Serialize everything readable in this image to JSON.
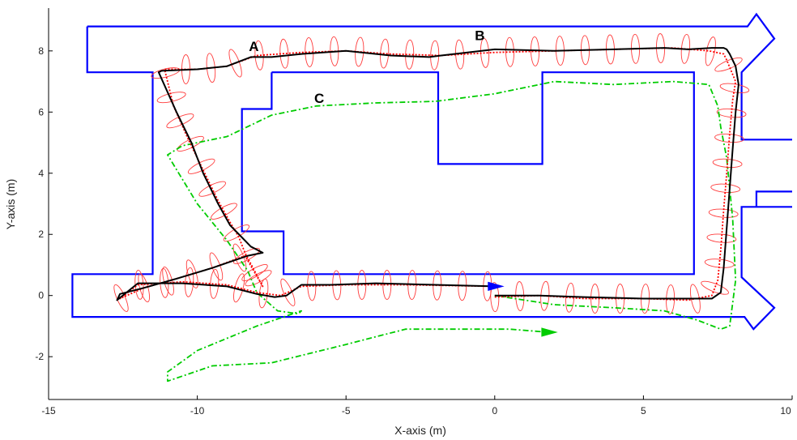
{
  "chart_data": {
    "type": "line",
    "title": "",
    "xlabel": "X-axis (m)",
    "ylabel": "Y-axis (m)",
    "xlim": [
      -15,
      10
    ],
    "ylim": [
      -3.4,
      9.4
    ],
    "grid": false,
    "xticks": [
      -15,
      -10,
      -5,
      0,
      5,
      10
    ],
    "yticks": [
      -2,
      0,
      2,
      4,
      6,
      8
    ],
    "annotations": [
      {
        "text": "A",
        "x": -8.1,
        "y": 8.0
      },
      {
        "text": "B",
        "x": -0.5,
        "y": 8.35
      },
      {
        "text": "C",
        "x": -5.9,
        "y": 6.3
      }
    ],
    "walls": [
      {
        "name": "outer-wall",
        "color": "#0000ff",
        "points": [
          [
            -13.7,
            8.8
          ],
          [
            8.5,
            8.8
          ],
          [
            8.8,
            9.2
          ],
          [
            9.4,
            8.4
          ],
          [
            8.3,
            7.3
          ],
          [
            8.3,
            5.1
          ],
          [
            10,
            5.1
          ]
        ]
      },
      {
        "name": "outer-wall-lower",
        "color": "#0000ff",
        "points": [
          [
            10,
            2.9
          ],
          [
            8.3,
            2.9
          ],
          [
            8.3,
            0.6
          ],
          [
            9.4,
            -0.4
          ],
          [
            8.7,
            -1.1
          ],
          [
            8.4,
            -0.7
          ],
          [
            -14.2,
            -0.7
          ],
          [
            -14.2,
            0.7
          ],
          [
            -11.5,
            0.7
          ],
          [
            -11.5,
            7.3
          ],
          [
            -13.7,
            7.3
          ],
          [
            -13.7,
            8.8
          ]
        ]
      },
      {
        "name": "side-door",
        "color": "#0000ff",
        "points": [
          [
            8.8,
            2.9
          ],
          [
            8.8,
            3.4
          ],
          [
            10,
            3.4
          ]
        ]
      },
      {
        "name": "inner-wall",
        "color": "#0000ff",
        "points": [
          [
            -7.5,
            7.3
          ],
          [
            -1.9,
            7.3
          ],
          [
            -1.9,
            4.3
          ],
          [
            1.6,
            4.3
          ],
          [
            1.6,
            7.3
          ],
          [
            6.7,
            7.3
          ],
          [
            6.7,
            0.7
          ],
          [
            -7.1,
            0.7
          ],
          [
            -7.1,
            2.1
          ],
          [
            -8.5,
            2.1
          ],
          [
            -8.5,
            6.1
          ],
          [
            -7.5,
            6.1
          ],
          [
            -7.5,
            7.3
          ]
        ]
      }
    ],
    "series": [
      {
        "name": "",
        "color": "#000000",
        "style": "solid",
        "x": [
          0.0,
          1.5,
          3.0,
          5.0,
          6.5,
          7.3,
          7.6,
          7.7,
          7.8,
          7.9,
          8.0,
          8.1,
          8.2,
          8.1,
          7.9,
          7.8,
          7.7,
          7.3,
          6.5,
          5.7,
          4.0,
          2.0,
          0.0,
          -1.8,
          -2.2,
          -3.5,
          -5.0,
          -6.5,
          -7.5,
          -8.2,
          -9.0,
          -10.0,
          -11.2,
          -11.3,
          -10.7,
          -10.2,
          -9.8,
          -9.3,
          -8.9,
          -8.5,
          -8.2,
          -7.8,
          -8.3,
          -9.5,
          -10.7,
          -11.8,
          -12.6,
          -12.7,
          -12.0,
          -10.5,
          -9.0,
          -8.0,
          -7.4,
          -7.0,
          -6.5,
          -5.5,
          -4.0,
          -2.0,
          0.0
        ],
        "y": [
          0.0,
          0.0,
          -0.05,
          -0.1,
          -0.1,
          -0.1,
          0.1,
          0.9,
          2.2,
          3.5,
          4.8,
          6.0,
          6.9,
          7.5,
          7.9,
          8.05,
          8.1,
          8.1,
          8.05,
          8.1,
          8.05,
          8.0,
          8.05,
          7.85,
          7.8,
          7.85,
          8.0,
          7.9,
          7.8,
          7.8,
          7.5,
          7.4,
          7.35,
          7.3,
          6.0,
          5.0,
          4.0,
          3.0,
          2.3,
          1.9,
          1.6,
          1.4,
          1.3,
          0.9,
          0.55,
          0.25,
          0.05,
          -0.15,
          0.4,
          0.4,
          0.3,
          0.05,
          -0.05,
          0.0,
          0.35,
          0.35,
          0.4,
          0.35,
          0.3
        ]
      },
      {
        "name": "",
        "color": "#ff0000",
        "style": "dotted",
        "x": [
          0.0,
          1.5,
          3.0,
          5.0,
          6.5,
          7.3,
          7.5,
          7.6,
          7.7,
          7.8,
          7.9,
          8.0,
          8.1,
          7.8,
          7.7,
          7.2,
          6.0,
          4.0,
          2.0,
          0.0,
          -1.8,
          -3.5,
          -5.0,
          -6.5,
          -8.0,
          -9.0,
          -10.0,
          -11.1,
          -10.8,
          -10.3,
          -9.8,
          -9.3,
          -8.9,
          -8.6,
          -8.4,
          -7.8,
          -8.4,
          -9.5,
          -10.7,
          -11.8,
          -12.6,
          -12.0,
          -10.5,
          -9.0,
          -8.0,
          -7.2,
          -6.5,
          -5.0,
          -3.0,
          0.0
        ],
        "y": [
          -0.05,
          0.0,
          -0.1,
          -0.1,
          -0.15,
          0.0,
          0.5,
          1.5,
          2.8,
          4.0,
          5.3,
          6.4,
          7.0,
          7.7,
          7.9,
          8.0,
          8.1,
          8.05,
          8.0,
          7.95,
          7.85,
          7.9,
          8.0,
          7.95,
          7.85,
          7.5,
          7.4,
          7.4,
          6.2,
          5.1,
          4.1,
          3.1,
          2.4,
          1.9,
          1.4,
          0.3,
          1.3,
          0.9,
          0.55,
          0.25,
          -0.1,
          0.35,
          0.45,
          0.35,
          0.1,
          0.0,
          0.3,
          0.35,
          0.35,
          0.3
        ]
      },
      {
        "name": "",
        "color": "#00cc00",
        "style": "dashdot",
        "x": [
          0.0,
          2.0,
          4.0,
          5.7,
          6.8,
          7.6,
          7.9,
          8.1,
          8.0,
          7.8,
          7.6,
          7.5,
          7.2,
          6.0,
          4.0,
          2.0,
          0.0,
          -2.0,
          -4.0,
          -6.0,
          -7.5,
          -9.0,
          -10.5,
          -11.0,
          -10.0,
          -9.0,
          -8.3,
          -8.0,
          -7.3,
          -6.6,
          -6.5,
          -8.0,
          -10.0,
          -11.0,
          -11.0,
          -9.5,
          -7.5,
          -5.0,
          -3.0,
          -1.0,
          0.5,
          1.8
        ],
        "y": [
          0.0,
          -0.3,
          -0.4,
          -0.5,
          -0.8,
          -1.1,
          -1.0,
          0.5,
          2.5,
          4.5,
          5.5,
          6.2,
          6.9,
          7.0,
          6.9,
          7.0,
          6.6,
          6.35,
          6.3,
          6.2,
          5.9,
          5.2,
          4.9,
          4.6,
          3.0,
          1.8,
          0.8,
          0.1,
          -0.5,
          -0.6,
          -0.5,
          -1.0,
          -1.8,
          -2.5,
          -2.8,
          -2.3,
          -2.2,
          -1.6,
          -1.1,
          -1.1,
          -1.1,
          -1.2
        ]
      }
    ],
    "end_markers": [
      {
        "color": "#0000ff",
        "x": 0.0,
        "y": 0.3
      },
      {
        "color": "#00cc00",
        "x": 1.8,
        "y": -1.2
      }
    ]
  }
}
